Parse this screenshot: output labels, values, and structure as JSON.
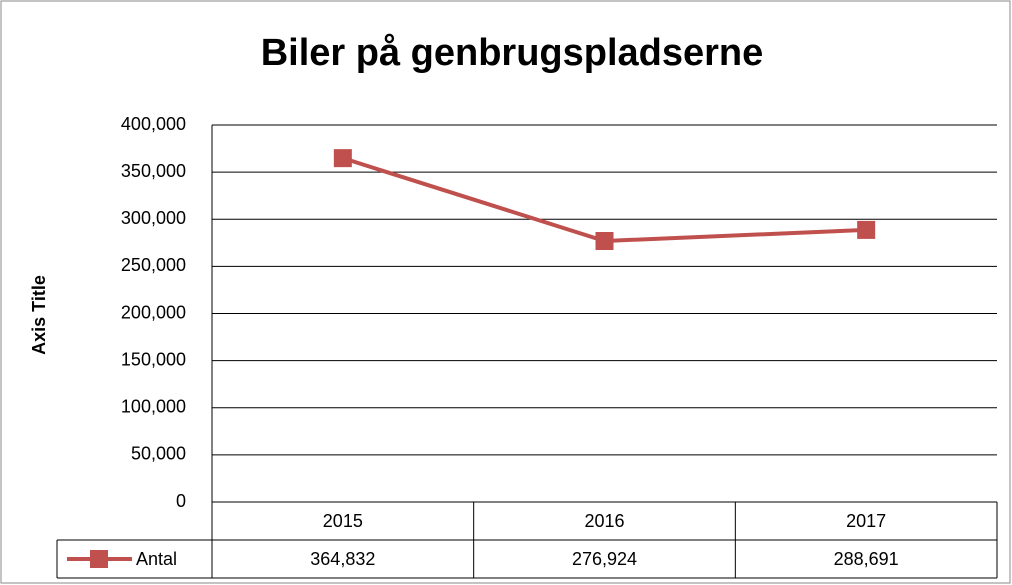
{
  "chart_data": {
    "type": "line",
    "title": "Biler på genbrugspladserne",
    "y_label": "Axis Title",
    "categories": [
      "2015",
      "2016",
      "2017"
    ],
    "series": [
      {
        "name": "Antal",
        "color": "#c0504d",
        "values": [
          364832,
          276924,
          288691
        ],
        "value_labels": [
          "364,832",
          "276,924",
          "288,691"
        ]
      }
    ],
    "ylim": [
      0,
      400000
    ],
    "yticks": [
      0,
      {
        "value": 50000,
        "label": "50,000"
      },
      {
        "value": 100000,
        "label": "100,000"
      },
      {
        "value": 150000,
        "label": "150,000"
      },
      {
        "value": 200000,
        "label": "200,000"
      },
      {
        "value": 250000,
        "label": "250,000"
      },
      {
        "value": 300000,
        "label": "300,000"
      },
      {
        "value": 350000,
        "label": "350,000"
      },
      {
        "value": 400000,
        "label": "400,000"
      }
    ],
    "grid": true,
    "legend": "data-table"
  }
}
